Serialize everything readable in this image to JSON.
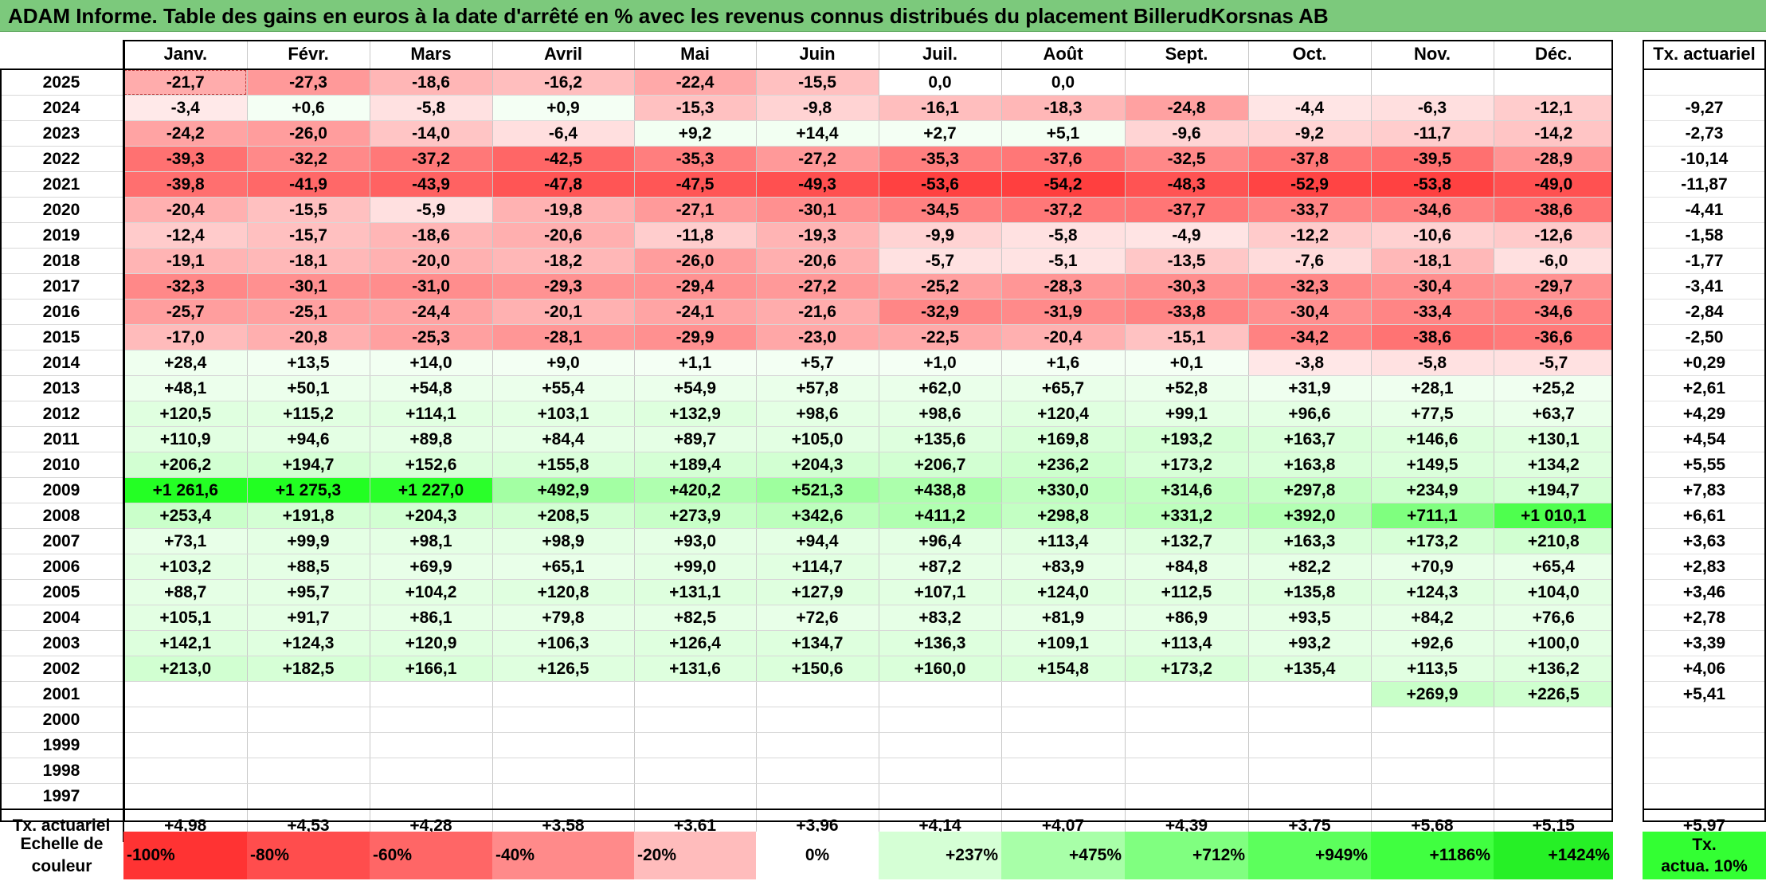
{
  "title": "ADAM Informe. Table des gains en euros à la date d'arrêté en % avec les revenus connus distribués du placement BillerudKorsnas AB",
  "months": [
    "Janv.",
    "Févr.",
    "Mars",
    "Avril",
    "Mai",
    "Juin",
    "Juil.",
    "Août",
    "Sept.",
    "Oct.",
    "Nov.",
    "Déc."
  ],
  "rate_header": "Tx. actuariel",
  "rows": [
    {
      "year": "2025",
      "values": [
        "-21,7",
        "-27,3",
        "-18,6",
        "-16,2",
        "-22,4",
        "-15,5",
        "0,0",
        "0,0",
        "",
        "",
        "",
        ""
      ],
      "rate": ""
    },
    {
      "year": "2024",
      "values": [
        "-3,4",
        "+0,6",
        "-5,8",
        "+0,9",
        "-15,3",
        "-9,8",
        "-16,1",
        "-18,3",
        "-24,8",
        "-4,4",
        "-6,3",
        "-12,1"
      ],
      "rate": "-9,27"
    },
    {
      "year": "2023",
      "values": [
        "-24,2",
        "-26,0",
        "-14,0",
        "-6,4",
        "+9,2",
        "+14,4",
        "+2,7",
        "+5,1",
        "-9,6",
        "-9,2",
        "-11,7",
        "-14,2"
      ],
      "rate": "-2,73"
    },
    {
      "year": "2022",
      "values": [
        "-39,3",
        "-32,2",
        "-37,2",
        "-42,5",
        "-35,3",
        "-27,2",
        "-35,3",
        "-37,6",
        "-32,5",
        "-37,8",
        "-39,5",
        "-28,9"
      ],
      "rate": "-10,14"
    },
    {
      "year": "2021",
      "values": [
        "-39,8",
        "-41,9",
        "-43,9",
        "-47,8",
        "-47,5",
        "-49,3",
        "-53,6",
        "-54,2",
        "-48,3",
        "-52,9",
        "-53,8",
        "-49,0"
      ],
      "rate": "-11,87"
    },
    {
      "year": "2020",
      "values": [
        "-20,4",
        "-15,5",
        "-5,9",
        "-19,8",
        "-27,1",
        "-30,1",
        "-34,5",
        "-37,2",
        "-37,7",
        "-33,7",
        "-34,6",
        "-38,6"
      ],
      "rate": "-4,41"
    },
    {
      "year": "2019",
      "values": [
        "-12,4",
        "-15,7",
        "-18,6",
        "-20,6",
        "-11,8",
        "-19,3",
        "-9,9",
        "-5,8",
        "-4,9",
        "-12,2",
        "-10,6",
        "-12,6"
      ],
      "rate": "-1,58"
    },
    {
      "year": "2018",
      "values": [
        "-19,1",
        "-18,1",
        "-20,0",
        "-18,2",
        "-26,0",
        "-20,6",
        "-5,7",
        "-5,1",
        "-13,5",
        "-7,6",
        "-18,1",
        "-6,0"
      ],
      "rate": "-1,77"
    },
    {
      "year": "2017",
      "values": [
        "-32,3",
        "-30,1",
        "-31,0",
        "-29,3",
        "-29,4",
        "-27,2",
        "-25,2",
        "-28,3",
        "-30,3",
        "-32,3",
        "-30,4",
        "-29,7"
      ],
      "rate": "-3,41"
    },
    {
      "year": "2016",
      "values": [
        "-25,7",
        "-25,1",
        "-24,4",
        "-20,1",
        "-24,1",
        "-21,6",
        "-32,9",
        "-31,9",
        "-33,8",
        "-30,4",
        "-33,4",
        "-34,6"
      ],
      "rate": "-2,84"
    },
    {
      "year": "2015",
      "values": [
        "-17,0",
        "-20,8",
        "-25,3",
        "-28,1",
        "-29,9",
        "-23,0",
        "-22,5",
        "-20,4",
        "-15,1",
        "-34,2",
        "-38,6",
        "-36,6"
      ],
      "rate": "-2,50"
    },
    {
      "year": "2014",
      "values": [
        "+28,4",
        "+13,5",
        "+14,0",
        "+9,0",
        "+1,1",
        "+5,7",
        "+1,0",
        "+1,6",
        "+0,1",
        "-3,8",
        "-5,8",
        "-5,7"
      ],
      "rate": "+0,29"
    },
    {
      "year": "2013",
      "values": [
        "+48,1",
        "+50,1",
        "+54,8",
        "+55,4",
        "+54,9",
        "+57,8",
        "+62,0",
        "+65,7",
        "+52,8",
        "+31,9",
        "+28,1",
        "+25,2"
      ],
      "rate": "+2,61"
    },
    {
      "year": "2012",
      "values": [
        "+120,5",
        "+115,2",
        "+114,1",
        "+103,1",
        "+132,9",
        "+98,6",
        "+98,6",
        "+120,4",
        "+99,1",
        "+96,6",
        "+77,5",
        "+63,7"
      ],
      "rate": "+4,29"
    },
    {
      "year": "2011",
      "values": [
        "+110,9",
        "+94,6",
        "+89,8",
        "+84,4",
        "+89,7",
        "+105,0",
        "+135,6",
        "+169,8",
        "+193,2",
        "+163,7",
        "+146,6",
        "+130,1"
      ],
      "rate": "+4,54"
    },
    {
      "year": "2010",
      "values": [
        "+206,2",
        "+194,7",
        "+152,6",
        "+155,8",
        "+189,4",
        "+204,3",
        "+206,7",
        "+236,2",
        "+173,2",
        "+163,8",
        "+149,5",
        "+134,2"
      ],
      "rate": "+5,55"
    },
    {
      "year": "2009",
      "values": [
        "+1 261,6",
        "+1 275,3",
        "+1 227,0",
        "+492,9",
        "+420,2",
        "+521,3",
        "+438,8",
        "+330,0",
        "+314,6",
        "+297,8",
        "+234,9",
        "+194,7"
      ],
      "rate": "+7,83"
    },
    {
      "year": "2008",
      "values": [
        "+253,4",
        "+191,8",
        "+204,3",
        "+208,5",
        "+273,9",
        "+342,6",
        "+411,2",
        "+298,8",
        "+331,2",
        "+392,0",
        "+711,1",
        "+1 010,1"
      ],
      "rate": "+6,61"
    },
    {
      "year": "2007",
      "values": [
        "+73,1",
        "+99,9",
        "+98,1",
        "+98,9",
        "+93,0",
        "+94,4",
        "+96,4",
        "+113,4",
        "+132,7",
        "+163,3",
        "+173,2",
        "+210,8"
      ],
      "rate": "+3,63"
    },
    {
      "year": "2006",
      "values": [
        "+103,2",
        "+88,5",
        "+69,9",
        "+65,1",
        "+99,0",
        "+114,7",
        "+87,2",
        "+83,9",
        "+84,8",
        "+82,2",
        "+70,9",
        "+65,4"
      ],
      "rate": "+2,83"
    },
    {
      "year": "2005",
      "values": [
        "+88,7",
        "+95,7",
        "+104,2",
        "+120,8",
        "+131,1",
        "+127,9",
        "+107,1",
        "+124,0",
        "+112,5",
        "+135,8",
        "+124,3",
        "+104,0"
      ],
      "rate": "+3,46"
    },
    {
      "year": "2004",
      "values": [
        "+105,1",
        "+91,7",
        "+86,1",
        "+79,8",
        "+82,5",
        "+72,6",
        "+83,2",
        "+81,9",
        "+86,9",
        "+93,5",
        "+84,2",
        "+76,6"
      ],
      "rate": "+2,78"
    },
    {
      "year": "2003",
      "values": [
        "+142,1",
        "+124,3",
        "+120,9",
        "+106,3",
        "+126,4",
        "+134,7",
        "+136,3",
        "+109,1",
        "+113,4",
        "+93,2",
        "+92,6",
        "+100,0"
      ],
      "rate": "+3,39"
    },
    {
      "year": "2002",
      "values": [
        "+213,0",
        "+182,5",
        "+166,1",
        "+126,5",
        "+131,6",
        "+150,6",
        "+160,0",
        "+154,8",
        "+173,2",
        "+135,4",
        "+113,5",
        "+136,2"
      ],
      "rate": "+4,06"
    },
    {
      "year": "2001",
      "values": [
        "",
        "",
        "",
        "",
        "",
        "",
        "",
        "",
        "",
        "",
        "+269,9",
        "+226,5"
      ],
      "rate": "+5,41"
    },
    {
      "year": "2000",
      "values": [
        "",
        "",
        "",
        "",
        "",
        "",
        "",
        "",
        "",
        "",
        "",
        ""
      ],
      "rate": ""
    },
    {
      "year": "1999",
      "values": [
        "",
        "",
        "",
        "",
        "",
        "",
        "",
        "",
        "",
        "",
        "",
        ""
      ],
      "rate": ""
    },
    {
      "year": "1998",
      "values": [
        "",
        "",
        "",
        "",
        "",
        "",
        "",
        "",
        "",
        "",
        "",
        ""
      ],
      "rate": ""
    },
    {
      "year": "1997",
      "values": [
        "",
        "",
        "",
        "",
        "",
        "",
        "",
        "",
        "",
        "",
        "",
        ""
      ],
      "rate": ""
    }
  ],
  "footer": {
    "label": "Tx. actuariel",
    "values": [
      "+4,98",
      "+4,53",
      "+4,28",
      "+3,58",
      "+3,61",
      "+3,96",
      "+4,14",
      "+4,07",
      "+4,39",
      "+3,75",
      "+5,68",
      "+5,15"
    ],
    "rate": "+5,97"
  },
  "legend": {
    "label_line1": "Echelle de",
    "label_line2": "couleur",
    "scale": [
      {
        "text": "-100%",
        "color": "#ff3333"
      },
      {
        "text": "-80%",
        "color": "#ff4d4d"
      },
      {
        "text": "-60%",
        "color": "#ff6666"
      },
      {
        "text": "-40%",
        "color": "#ff8a8a"
      },
      {
        "text": "-20%",
        "color": "#ffbcbc"
      },
      {
        "text": "0%",
        "color": "#ffffff"
      },
      {
        "text": "+237%",
        "color": "#d5ffd5"
      },
      {
        "text": "+475%",
        "color": "#a8ffa8"
      },
      {
        "text": "+712%",
        "color": "#80ff80"
      },
      {
        "text": "+949%",
        "color": "#5cff5c"
      },
      {
        "text": "+1186%",
        "color": "#40ff40"
      },
      {
        "text": "+1424%",
        "color": "#26f026"
      }
    ],
    "rate_key_line1": "Tx.",
    "rate_key_line2": "actua. 10%",
    "rate_key_color": "#33ff33"
  }
}
